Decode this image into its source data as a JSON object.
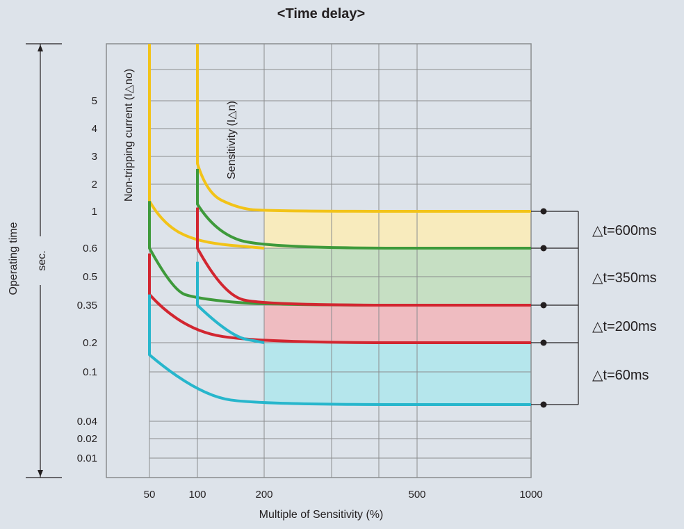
{
  "chart_data": {
    "type": "line",
    "title": "<Time delay>",
    "xlabel": "Multiple of Sensitivity (%)",
    "ylabel": "Operating time",
    "yunit": "sec.",
    "x_ticks": [
      "50",
      "100",
      "200",
      "500",
      "1000"
    ],
    "y_ticks": [
      "5",
      "4",
      "3",
      "2",
      "1",
      "0.6",
      "0.5",
      "0.35",
      "0.2",
      "0.1",
      "0.04",
      "0.02",
      "0.01"
    ],
    "vertical_labels": {
      "non_tripping": "Non-tripping current (I△no)",
      "sensitivity": "Sensitivity (I△n)"
    },
    "series": [
      {
        "color": "#f2c318",
        "lines": [
          {
            "x": [
              100,
              100,
              110,
              150,
              200,
              1000
            ],
            "y": [
              ">5",
              2.7,
              1.6,
              1.1,
              1,
              1
            ]
          },
          {
            "x": [
              50,
              50,
              60,
              100,
              200
            ],
            "y": [
              ">5",
              1.3,
              0.85,
              0.65,
              0.6
            ]
          }
        ]
      },
      {
        "color": "#3e9a3b",
        "lines": [
          {
            "x": [
              100,
              100,
              120,
              200,
              1000
            ],
            "y": [
              2.5,
              1.2,
              0.75,
              0.6,
              0.6
            ]
          },
          {
            "x": [
              50,
              50,
              70,
              100,
              200,
              1000
            ],
            "y": [
              1.3,
              0.6,
              0.42,
              0.38,
              0.35,
              0.35
            ]
          }
        ]
      },
      {
        "color": "#d22630",
        "lines": [
          {
            "x": [
              100,
              100,
              130,
              200,
              1000
            ],
            "y": [
              1.1,
              0.6,
              0.4,
              0.35,
              0.35
            ]
          },
          {
            "x": [
              50,
              50,
              80,
              200,
              1000
            ],
            "y": [
              0.58,
              0.4,
              0.24,
              0.2,
              0.2
            ]
          }
        ]
      },
      {
        "color": "#27b6cc",
        "lines": [
          {
            "x": [
              100,
              100,
              140,
              200
            ],
            "y": [
              0.55,
              0.35,
              0.22,
              0.2
            ]
          },
          {
            "x": [
              50,
              50,
              100,
              200,
              1000
            ],
            "y": [
              0.4,
              0.15,
              0.065,
              0.055,
              0.055
            ]
          }
        ]
      }
    ],
    "bands": [
      {
        "color": "#f8ebbd",
        "x": [
          200,
          1000
        ],
        "y": [
          0.6,
          1
        ]
      },
      {
        "color": "#c6dfc3",
        "x": [
          200,
          1000
        ],
        "y": [
          0.35,
          0.6
        ]
      },
      {
        "color": "#efbcc1",
        "x": [
          200,
          1000
        ],
        "y": [
          0.2,
          0.35
        ]
      },
      {
        "color": "#b5e6ec",
        "x": [
          200,
          1000
        ],
        "y": [
          0.055,
          0.2
        ]
      }
    ],
    "annotations": [
      {
        "text": "△t=600ms",
        "y_range": [
          0.6,
          1
        ]
      },
      {
        "text": "△t=350ms",
        "y_range": [
          0.35,
          0.6
        ]
      },
      {
        "text": "△t=200ms",
        "y_range": [
          0.2,
          0.35
        ]
      },
      {
        "text": "△t=60ms",
        "y_range": [
          0.055,
          0.2
        ]
      }
    ],
    "grid": true
  }
}
